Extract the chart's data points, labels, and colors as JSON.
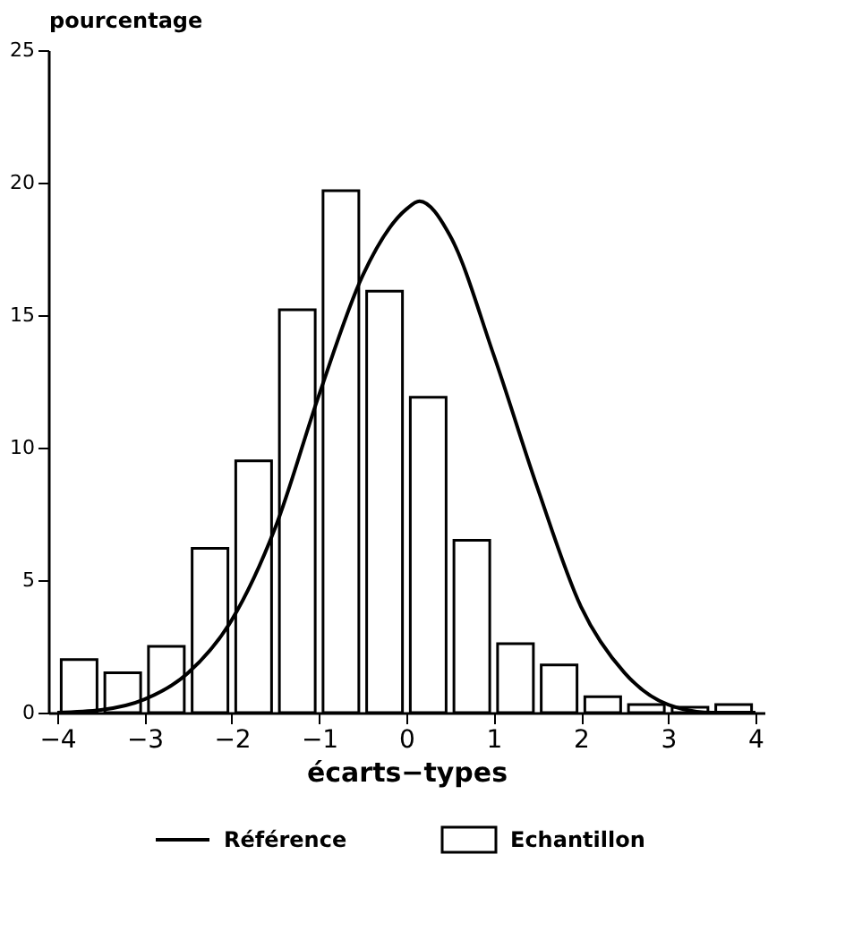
{
  "chart_data": {
    "type": "bar",
    "xlabel": "écarts−types",
    "ylabel": "pourcentage",
    "xlim": [
      -4,
      4
    ],
    "xticks": [
      -4,
      -3,
      -2,
      -1,
      0,
      1,
      2,
      3,
      4
    ],
    "ylim": [
      0,
      25
    ],
    "yticks": [
      0,
      5,
      10,
      15,
      20,
      25
    ],
    "grid": false,
    "legend": "bottom",
    "x": [
      -3.75,
      -3.25,
      -2.75,
      -2.25,
      -1.75,
      -1.25,
      -0.75,
      -0.25,
      0.25,
      0.75,
      1.25,
      1.75,
      2.25,
      2.75,
      3.25,
      3.75
    ],
    "series": [
      {
        "name": "Echantillon",
        "color": "#ffffff",
        "values": [
          2.0,
          1.5,
          2.5,
          6.2,
          9.5,
          15.2,
          19.7,
          15.9,
          11.9,
          6.5,
          2.6,
          1.8,
          0.6,
          0.3,
          0.2,
          0.3
        ]
      },
      {
        "name": "Référence",
        "type": "line",
        "color": "#000000",
        "x": [
          -4,
          -3.5,
          -3,
          -2.5,
          -2,
          -1.5,
          -1,
          -0.5,
          0,
          0.15,
          0.5,
          1,
          1.5,
          2,
          2.5,
          3,
          3.5,
          4
        ],
        "values": [
          0,
          0.1,
          0.5,
          1.5,
          3.5,
          7,
          12,
          16.5,
          19,
          19.3,
          18,
          13.5,
          8.5,
          4,
          1.5,
          0.3,
          0,
          0
        ]
      }
    ]
  }
}
